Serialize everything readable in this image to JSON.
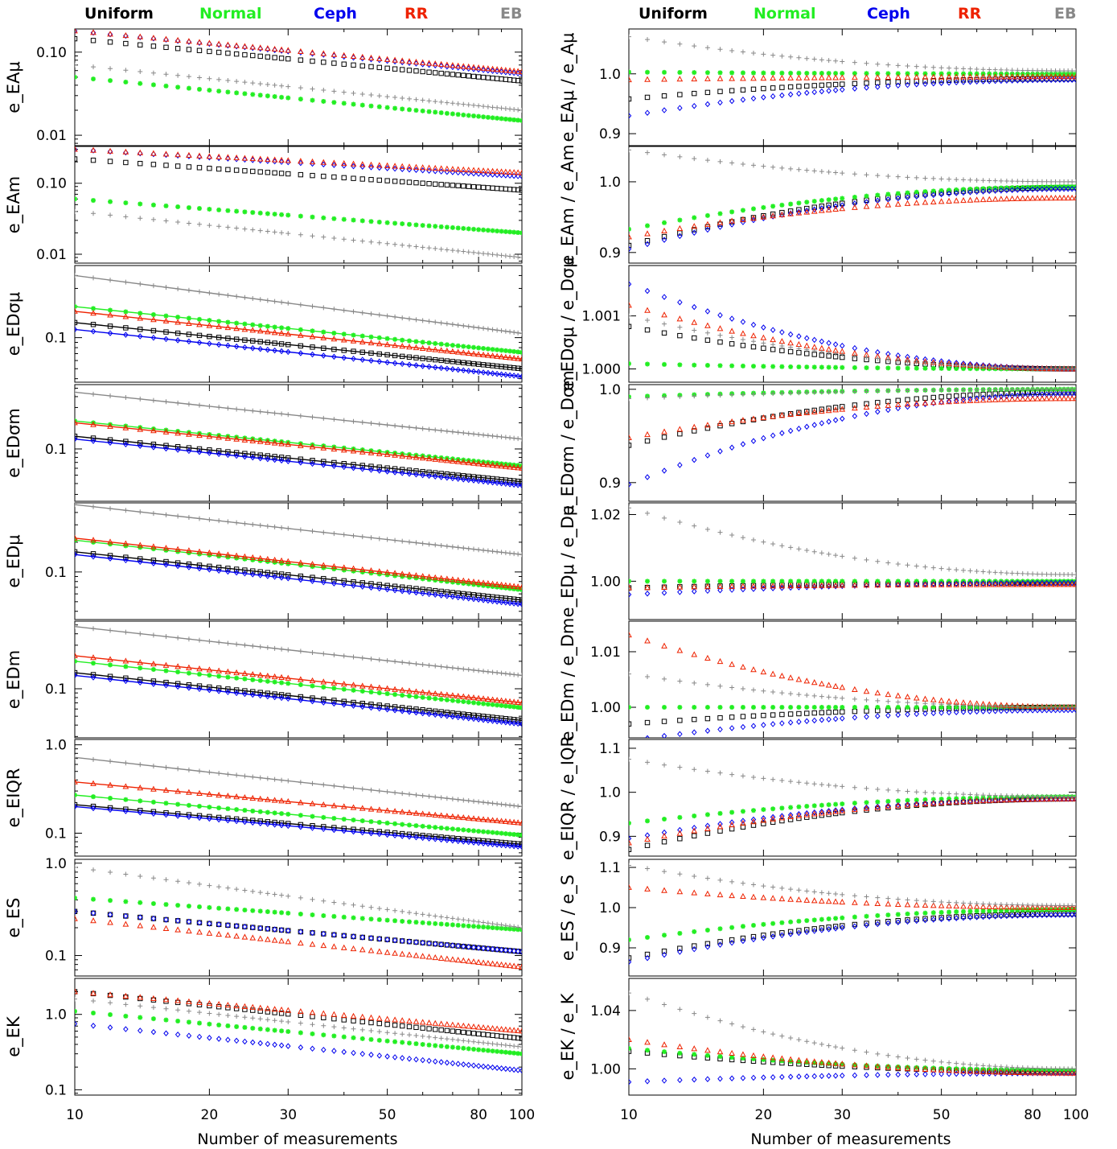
{
  "legend": [
    {
      "name": "Uniform",
      "color": "#000000",
      "marker": "square"
    },
    {
      "name": "Normal",
      "color": "#22ee22",
      "marker": "asterisk"
    },
    {
      "name": "Ceph",
      "color": "#0000ee",
      "marker": "diamond"
    },
    {
      "name": "RR",
      "color": "#ee2200",
      "marker": "triangle"
    },
    {
      "name": "EB",
      "color": "#888888",
      "marker": "plus"
    }
  ],
  "xlabel": "Number of measurements",
  "chart_data": [
    {
      "type": "scatter",
      "panel": "left-1",
      "ylabel": "e_EAμ",
      "xscale": "log",
      "yscale": "log",
      "xlim": [
        10,
        100
      ],
      "ylim": [
        0.0075,
        0.19
      ],
      "yticks": [
        "0.01",
        "0.10"
      ],
      "yticks_values": [
        0.01,
        0.1
      ],
      "series": [
        {
          "name": "Uniform",
          "start": 0.145,
          "end": 0.045
        },
        {
          "name": "Normal",
          "start": 0.05,
          "end": 0.015
        },
        {
          "name": "Ceph",
          "start": 0.18,
          "end": 0.055
        },
        {
          "name": "RR",
          "start": 0.18,
          "end": 0.058
        },
        {
          "name": "EB",
          "start": 0.07,
          "end": 0.02
        }
      ]
    },
    {
      "type": "scatter",
      "panel": "left-2",
      "ylabel": "e_EAm",
      "xscale": "log",
      "yscale": "log",
      "xlim": [
        10,
        100
      ],
      "ylim": [
        0.0075,
        0.33
      ],
      "yticks": [
        "0.01",
        "0.10"
      ],
      "yticks_values": [
        0.01,
        0.1
      ],
      "series": [
        {
          "name": "Uniform",
          "start": 0.22,
          "end": 0.08
        },
        {
          "name": "Normal",
          "start": 0.06,
          "end": 0.02
        },
        {
          "name": "Ceph",
          "start": 0.3,
          "end": 0.125
        },
        {
          "name": "RR",
          "start": 0.3,
          "end": 0.14
        },
        {
          "name": "EB",
          "start": 0.04,
          "end": 0.009
        }
      ]
    },
    {
      "type": "scatter",
      "panel": "left-3",
      "ylabel": "e_EDσμ",
      "xscale": "log",
      "yscale": "log",
      "xlim": [
        10,
        100
      ],
      "ylim": [
        0.037,
        0.5
      ],
      "yticks": [
        "0.1"
      ],
      "yticks_values": [
        0.1
      ],
      "fit_lines": true,
      "series": [
        {
          "name": "Uniform",
          "start": 0.14,
          "end": 0.05
        },
        {
          "name": "Normal",
          "start": 0.2,
          "end": 0.072
        },
        {
          "name": "Ceph",
          "start": 0.12,
          "end": 0.042
        },
        {
          "name": "RR",
          "start": 0.18,
          "end": 0.062
        },
        {
          "name": "EB",
          "start": 0.4,
          "end": 0.11
        }
      ]
    },
    {
      "type": "scatter",
      "panel": "left-4",
      "ylabel": "e_EDσm",
      "xscale": "log",
      "yscale": "log",
      "xlim": [
        10,
        100
      ],
      "ylim": [
        0.025,
        0.55
      ],
      "yticks": [
        "0.1"
      ],
      "yticks_values": [
        0.1
      ],
      "fit_lines": true,
      "series": [
        {
          "name": "Uniform",
          "start": 0.14,
          "end": 0.042
        },
        {
          "name": "Normal",
          "start": 0.21,
          "end": 0.064
        },
        {
          "name": "Ceph",
          "start": 0.13,
          "end": 0.038
        },
        {
          "name": "RR",
          "start": 0.2,
          "end": 0.06
        },
        {
          "name": "EB",
          "start": 0.45,
          "end": 0.13
        }
      ]
    },
    {
      "type": "scatter",
      "panel": "left-5",
      "ylabel": "e_EDμ",
      "xscale": "log",
      "yscale": "log",
      "xlim": [
        10,
        100
      ],
      "ylim": [
        0.033,
        0.5
      ],
      "yticks": [
        "0.1"
      ],
      "yticks_values": [
        0.1
      ],
      "fit_lines": true,
      "series": [
        {
          "name": "Uniform",
          "start": 0.16,
          "end": 0.052
        },
        {
          "name": "Normal",
          "start": 0.21,
          "end": 0.066
        },
        {
          "name": "Ceph",
          "start": 0.15,
          "end": 0.047
        },
        {
          "name": "RR",
          "start": 0.22,
          "end": 0.07
        },
        {
          "name": "EB",
          "start": 0.48,
          "end": 0.15
        }
      ]
    },
    {
      "type": "scatter",
      "panel": "left-6",
      "ylabel": "e_EDm",
      "xscale": "log",
      "yscale": "log",
      "xlim": [
        10,
        100
      ],
      "ylim": [
        0.029,
        0.55
      ],
      "yticks": [
        "0.1"
      ],
      "yticks_values": [
        0.1
      ],
      "fit_lines": true,
      "series": [
        {
          "name": "Uniform",
          "start": 0.15,
          "end": 0.045
        },
        {
          "name": "Normal",
          "start": 0.2,
          "end": 0.062
        },
        {
          "name": "Ceph",
          "start": 0.14,
          "end": 0.041
        },
        {
          "name": "RR",
          "start": 0.23,
          "end": 0.07
        },
        {
          "name": "EB",
          "start": 0.48,
          "end": 0.14
        }
      ]
    },
    {
      "type": "scatter",
      "panel": "left-7",
      "ylabel": "e_EIQR",
      "xscale": "log",
      "yscale": "log",
      "xlim": [
        10,
        100
      ],
      "ylim": [
        0.055,
        1.15
      ],
      "yticks": [
        "0.1",
        "1.0"
      ],
      "yticks_values": [
        0.1,
        1.0
      ],
      "fit_lines": true,
      "series": [
        {
          "name": "Uniform",
          "start": 0.21,
          "end": 0.075
        },
        {
          "name": "Normal",
          "start": 0.27,
          "end": 0.095
        },
        {
          "name": "Ceph",
          "start": 0.2,
          "end": 0.07
        },
        {
          "name": "RR",
          "start": 0.38,
          "end": 0.13
        },
        {
          "name": "EB",
          "start": 0.72,
          "end": 0.2
        }
      ]
    },
    {
      "type": "scatter",
      "panel": "left-8",
      "ylabel": "e_ES",
      "xscale": "log",
      "yscale": "log",
      "xlim": [
        10,
        100
      ],
      "ylim": [
        0.06,
        1.1
      ],
      "yticks": [
        "0.1",
        "1.0"
      ],
      "yticks_values": [
        0.1,
        1.0
      ],
      "series": [
        {
          "name": "Uniform",
          "start": 0.3,
          "end": 0.11
        },
        {
          "name": "Normal",
          "start": 0.42,
          "end": 0.19
        },
        {
          "name": "Ceph",
          "start": 0.3,
          "end": 0.11
        },
        {
          "name": "RR",
          "start": 0.25,
          "end": 0.075
        },
        {
          "name": "EB",
          "start": 0.9,
          "end": 0.2
        }
      ]
    },
    {
      "type": "scatter",
      "panel": "left-9",
      "ylabel": "e_EK",
      "xscale": "log",
      "yscale": "log",
      "xlim": [
        10,
        100
      ],
      "ylim": [
        0.085,
        3.0
      ],
      "yticks": [
        "0.1",
        "1.0"
      ],
      "yticks_values": [
        0.1,
        1.0
      ],
      "series": [
        {
          "name": "Uniform",
          "start": 2.0,
          "end": 0.48
        },
        {
          "name": "Normal",
          "start": 1.1,
          "end": 0.3
        },
        {
          "name": "Ceph",
          "start": 0.75,
          "end": 0.18
        },
        {
          "name": "RR",
          "start": 2.0,
          "end": 0.6
        },
        {
          "name": "EB",
          "start": 1.6,
          "end": 0.37
        }
      ]
    },
    {
      "type": "scatter",
      "panel": "right-1",
      "ylabel": "e_EAμ / e_Aμ",
      "xscale": "log",
      "yscale": "linear",
      "xlim": [
        10,
        100
      ],
      "ylim": [
        0.88,
        1.075
      ],
      "yticks": [
        "0.9",
        "1.0"
      ],
      "yticks_values": [
        0.9,
        1.0
      ],
      "series": [
        {
          "name": "Uniform",
          "start": 0.958,
          "end": 0.992
        },
        {
          "name": "Normal",
          "start": 1.003,
          "end": 1.0
        },
        {
          "name": "Ceph",
          "start": 0.93,
          "end": 0.99
        },
        {
          "name": "RR",
          "start": 0.99,
          "end": 0.995
        },
        {
          "name": "EB",
          "start": 1.062,
          "end": 1.005
        }
      ]
    },
    {
      "type": "scatter",
      "panel": "right-2",
      "ylabel": "e_EAm / e_Am",
      "xscale": "log",
      "yscale": "linear",
      "xlim": [
        10,
        100
      ],
      "ylim": [
        0.885,
        1.05
      ],
      "yticks": [
        "0.9",
        "1.0"
      ],
      "yticks_values": [
        0.9,
        1.0
      ],
      "series": [
        {
          "name": "Uniform",
          "start": 0.91,
          "end": 0.992
        },
        {
          "name": "Normal",
          "start": 0.933,
          "end": 0.993
        },
        {
          "name": "Ceph",
          "start": 0.905,
          "end": 0.99
        },
        {
          "name": "RR",
          "start": 0.922,
          "end": 0.977
        },
        {
          "name": "EB",
          "start": 1.045,
          "end": 1.0
        }
      ]
    },
    {
      "type": "scatter",
      "panel": "right-3",
      "ylabel": "e_EDσμ / e_Dσμ",
      "xscale": "log",
      "yscale": "linear",
      "xlim": [
        10,
        100
      ],
      "ylim": [
        0.99975,
        1.00195
      ],
      "yticks": [
        "1.000",
        "1.001"
      ],
      "yticks_values": [
        1.0,
        1.001
      ],
      "series": [
        {
          "name": "Uniform",
          "start": 1.0008,
          "end": 1.0
        },
        {
          "name": "Normal",
          "start": 1.0001,
          "end": 1.0
        },
        {
          "name": "Ceph",
          "start": 1.0016,
          "end": 1.0
        },
        {
          "name": "RR",
          "start": 1.0012,
          "end": 1.0
        },
        {
          "name": "EB",
          "start": 1.001,
          "end": 1.0
        }
      ]
    },
    {
      "type": "scatter",
      "panel": "right-4",
      "ylabel": "e_EDσm / e_Dσm",
      "xscale": "log",
      "yscale": "linear",
      "xlim": [
        10,
        100
      ],
      "ylim": [
        0.88,
        1.005
      ],
      "yticks": [
        "0.9",
        "1.0"
      ],
      "yticks_values": [
        0.9,
        1.0
      ],
      "series": [
        {
          "name": "Uniform",
          "start": 0.94,
          "end": 0.997
        },
        {
          "name": "Normal",
          "start": 0.992,
          "end": 1.0
        },
        {
          "name": "Ceph",
          "start": 0.898,
          "end": 0.995
        },
        {
          "name": "RR",
          "start": 0.948,
          "end": 0.99
        },
        {
          "name": "EB",
          "start": 0.99,
          "end": 1.0
        }
      ]
    },
    {
      "type": "scatter",
      "panel": "right-5",
      "ylabel": "e_EDμ / e_Dμ",
      "xscale": "log",
      "yscale": "linear",
      "xlim": [
        10,
        100
      ],
      "ylim": [
        0.9885,
        1.0235
      ],
      "yticks": [
        "1.00",
        "1.02"
      ],
      "yticks_values": [
        1.0,
        1.02
      ],
      "series": [
        {
          "name": "Uniform",
          "start": 0.998,
          "end": 0.9995
        },
        {
          "name": "Normal",
          "start": 1.0,
          "end": 1.0
        },
        {
          "name": "Ceph",
          "start": 0.996,
          "end": 0.9995
        },
        {
          "name": "RR",
          "start": 0.998,
          "end": 0.999
        },
        {
          "name": "EB",
          "start": 1.022,
          "end": 1.002
        }
      ]
    },
    {
      "type": "scatter",
      "panel": "right-6",
      "ylabel": "e_EDm / e_Dm",
      "xscale": "log",
      "yscale": "linear",
      "xlim": [
        10,
        100
      ],
      "ylim": [
        0.9945,
        1.0155
      ],
      "yticks": [
        "1.00",
        "1.01"
      ],
      "yticks_values": [
        1.0,
        1.01
      ],
      "series": [
        {
          "name": "Uniform",
          "start": 0.997,
          "end": 1.0
        },
        {
          "name": "Normal",
          "start": 1.0,
          "end": 1.0
        },
        {
          "name": "Ceph",
          "start": 0.994,
          "end": 0.9995
        },
        {
          "name": "RR",
          "start": 1.013,
          "end": 1.0
        },
        {
          "name": "EB",
          "start": 1.006,
          "end": 1.0
        }
      ]
    },
    {
      "type": "scatter",
      "panel": "right-7",
      "ylabel": "e_EIQR / e_IQR",
      "xscale": "log",
      "yscale": "linear",
      "xlim": [
        10,
        100
      ],
      "ylim": [
        0.855,
        1.12
      ],
      "yticks": [
        "0.9",
        "1.0",
        "1.1"
      ],
      "yticks_values": [
        0.9,
        1.0,
        1.1
      ],
      "series": [
        {
          "name": "Uniform",
          "start": 0.87,
          "end": 0.985
        },
        {
          "name": "Normal",
          "start": 0.93,
          "end": 0.99
        },
        {
          "name": "Ceph",
          "start": 0.895,
          "end": 0.985
        },
        {
          "name": "RR",
          "start": 0.885,
          "end": 0.985
        },
        {
          "name": "EB",
          "start": 1.075,
          "end": 0.99
        }
      ]
    },
    {
      "type": "scatter",
      "panel": "right-8",
      "ylabel": "e_ES / e_S",
      "xscale": "log",
      "yscale": "linear",
      "xlim": [
        10,
        100
      ],
      "ylim": [
        0.83,
        1.12
      ],
      "yticks": [
        "0.9",
        "1.0",
        "1.1"
      ],
      "yticks_values": [
        0.9,
        1.0,
        1.1
      ],
      "series": [
        {
          "name": "Uniform",
          "start": 0.875,
          "end": 0.985
        },
        {
          "name": "Normal",
          "start": 0.92,
          "end": 0.995
        },
        {
          "name": "Ceph",
          "start": 0.865,
          "end": 0.982
        },
        {
          "name": "RR",
          "start": 1.05,
          "end": 1.0
        },
        {
          "name": "EB",
          "start": 1.105,
          "end": 1.005
        }
      ]
    },
    {
      "type": "scatter",
      "panel": "right-9",
      "ylabel": "e_EK / e_K",
      "xscale": "log",
      "yscale": "linear",
      "xlim": [
        10,
        100
      ],
      "ylim": [
        0.982,
        1.062
      ],
      "yticks": [
        "1.00",
        "1.04"
      ],
      "yticks_values": [
        1.0,
        1.04
      ],
      "series": [
        {
          "name": "Uniform",
          "start": 1.012,
          "end": 0.998
        },
        {
          "name": "Normal",
          "start": 1.014,
          "end": 0.999
        },
        {
          "name": "Ceph",
          "start": 0.991,
          "end": 0.997
        },
        {
          "name": "RR",
          "start": 1.02,
          "end": 0.997
        },
        {
          "name": "EB",
          "start": 1.052,
          "end": 1.0
        }
      ]
    }
  ]
}
